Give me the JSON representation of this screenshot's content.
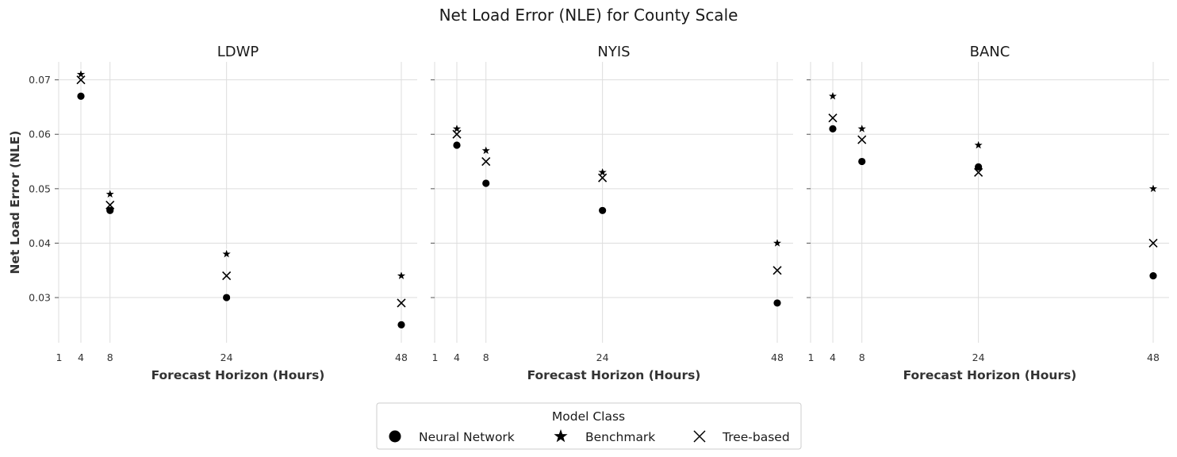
{
  "figure_title": "Net Load Error (NLE) for County Scale",
  "chart_data": [
    {
      "type": "scatter",
      "title": "LDWP",
      "xlabel": "Forecast Horizon (Hours)",
      "ylabel": "Net Load Error (NLE)",
      "x_ticks": [
        1,
        4,
        8,
        24,
        48
      ],
      "y_ticks": [
        0.03,
        0.04,
        0.05,
        0.06,
        0.07
      ],
      "y_tick_labels": [
        "0.03",
        "0.04",
        "0.05",
        "0.06",
        "0.07"
      ],
      "ylim": [
        0.0217,
        0.0733
      ],
      "grid": true,
      "series": [
        {
          "name": "Neural Network",
          "marker": "circle",
          "x": [
            4,
            8,
            24,
            48
          ],
          "y": [
            0.067,
            0.046,
            0.03,
            0.025
          ]
        },
        {
          "name": "Benchmark",
          "marker": "star",
          "x": [
            4,
            8,
            24,
            48
          ],
          "y": [
            0.071,
            0.049,
            0.038,
            0.034
          ]
        },
        {
          "name": "Tree-based",
          "marker": "x",
          "x": [
            4,
            8,
            24,
            48
          ],
          "y": [
            0.07,
            0.047,
            0.034,
            0.029
          ]
        }
      ]
    },
    {
      "type": "scatter",
      "title": "NYIS",
      "xlabel": "Forecast Horizon (Hours)",
      "ylabel": "",
      "x_ticks": [
        1,
        4,
        8,
        24,
        48
      ],
      "y_ticks": [
        0.03,
        0.04,
        0.05,
        0.06,
        0.07
      ],
      "y_tick_labels": [],
      "ylim": [
        0.0217,
        0.0733
      ],
      "grid": true,
      "series": [
        {
          "name": "Neural Network",
          "marker": "circle",
          "x": [
            4,
            8,
            24,
            48
          ],
          "y": [
            0.058,
            0.051,
            0.046,
            0.029
          ]
        },
        {
          "name": "Benchmark",
          "marker": "star",
          "x": [
            4,
            8,
            24,
            48
          ],
          "y": [
            0.061,
            0.057,
            0.053,
            0.04
          ]
        },
        {
          "name": "Tree-based",
          "marker": "x",
          "x": [
            4,
            8,
            24,
            48
          ],
          "y": [
            0.06,
            0.055,
            0.052,
            0.035
          ]
        }
      ]
    },
    {
      "type": "scatter",
      "title": "BANC",
      "xlabel": "Forecast Horizon (Hours)",
      "ylabel": "",
      "x_ticks": [
        1,
        4,
        8,
        24,
        48
      ],
      "y_ticks": [
        0.03,
        0.04,
        0.05,
        0.06,
        0.07
      ],
      "y_tick_labels": [],
      "ylim": [
        0.0217,
        0.0733
      ],
      "grid": true,
      "series": [
        {
          "name": "Neural Network",
          "marker": "circle",
          "x": [
            4,
            8,
            24,
            48
          ],
          "y": [
            0.061,
            0.055,
            0.054,
            0.034
          ]
        },
        {
          "name": "Benchmark",
          "marker": "star",
          "x": [
            4,
            8,
            24,
            48
          ],
          "y": [
            0.067,
            0.061,
            0.058,
            0.05
          ]
        },
        {
          "name": "Tree-based",
          "marker": "x",
          "x": [
            4,
            8,
            24,
            48
          ],
          "y": [
            0.063,
            0.059,
            0.053,
            0.04
          ]
        }
      ]
    }
  ],
  "legend": {
    "title": "Model Class",
    "position": "bottom-center",
    "items": [
      {
        "label": "Neural Network",
        "marker": "circle"
      },
      {
        "label": "Benchmark",
        "marker": "star"
      },
      {
        "label": "Tree-based",
        "marker": "x"
      }
    ]
  },
  "colors": {
    "marker": "#000000",
    "grid": "#dddddd",
    "text": "#333333"
  }
}
